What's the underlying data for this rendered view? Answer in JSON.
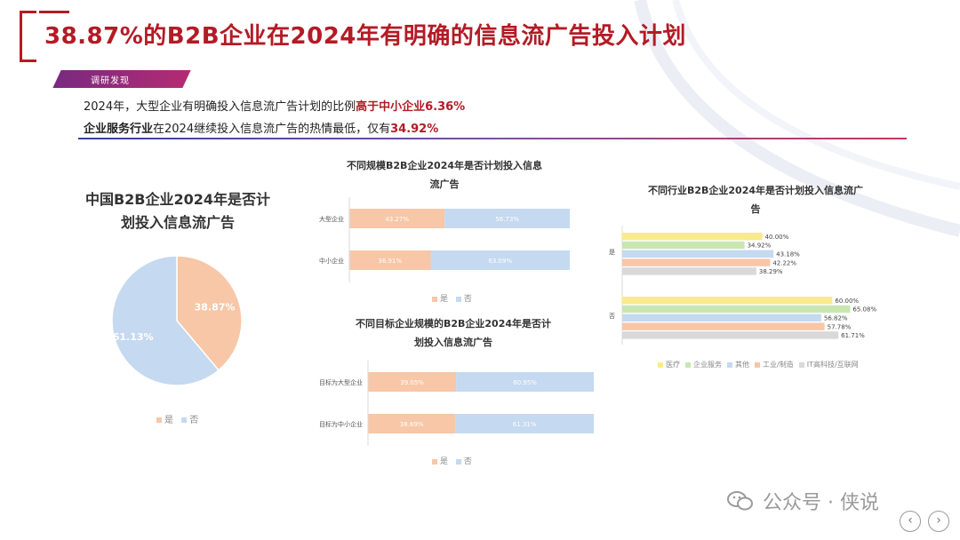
{
  "header": {
    "title": "38.87%的B2B企业在2024年有明确的信息流广告投入计划",
    "tag": "调研发现"
  },
  "findings": [
    {
      "pre": "2024年，大型企业有明确投入信息流广告计划的比例",
      "highlight": "高于中小企业6.36%",
      "post": ""
    },
    {
      "pre_bold": "企业服务行业",
      "pre": "在2024继续投入信息流广告的热情最低，仅有",
      "highlight": "34.92%"
    }
  ],
  "colors": {
    "yes": "#f7c7a7",
    "no": "#c5d9f0",
    "accent": "#b31b25"
  },
  "chart_data": [
    {
      "type": "pie",
      "title_line1": "中国B2B企业2024年是否计",
      "title_line2": "划投入信息流广告",
      "categories": [
        "是",
        "否"
      ],
      "values": [
        38.87,
        61.13
      ],
      "labels": [
        "38.87%",
        "61.13%"
      ],
      "legend": [
        "是",
        "否"
      ],
      "legend_position": "bottom"
    },
    {
      "type": "bar",
      "orientation": "horizontal-stacked",
      "title_line1": "不同规模B2B企业2024年是否计划投入信息",
      "title_line2": "流广告",
      "categories": [
        "大型企业",
        "中小企业"
      ],
      "series": [
        {
          "name": "是",
          "values": [
            43.27,
            36.91
          ],
          "labels": [
            "43.27%",
            "36.91%"
          ]
        },
        {
          "name": "否",
          "values": [
            56.73,
            63.09
          ],
          "labels": [
            "56.73%",
            "63.09%"
          ]
        }
      ],
      "legend": [
        "是",
        "否"
      ],
      "legend_position": "bottom",
      "xlim": [
        0,
        100
      ]
    },
    {
      "type": "bar",
      "orientation": "horizontal-stacked",
      "title_line1": "不同目标企业规模的B2B企业2024年是否计",
      "title_line2": "划投入信息流广告",
      "categories": [
        "目标为大型企业",
        "目标为中小企业"
      ],
      "series": [
        {
          "name": "是",
          "values": [
            39.05,
            38.69
          ],
          "labels": [
            "39.05%",
            "38.69%"
          ]
        },
        {
          "name": "否",
          "values": [
            60.95,
            61.31
          ],
          "labels": [
            "60.95%",
            "61.31%"
          ]
        }
      ],
      "legend": [
        "是",
        "否"
      ],
      "legend_position": "bottom",
      "xlim": [
        0,
        100
      ]
    },
    {
      "type": "bar",
      "orientation": "horizontal-grouped",
      "title_line1": "不同行业B2B企业2024年是否计划投入信息流广",
      "title_line2": "告",
      "categories": [
        "是",
        "否"
      ],
      "series": [
        {
          "name": "医疗",
          "color": "#f9ea8f",
          "values": [
            40.0,
            60.0
          ],
          "labels": [
            "40.00%",
            "60.00%"
          ]
        },
        {
          "name": "企业服务",
          "color": "#c8e7b0",
          "values": [
            34.92,
            65.08
          ],
          "labels": [
            "34.92%",
            "65.08%"
          ]
        },
        {
          "name": "其他",
          "color": "#c5d9f0",
          "values": [
            43.18,
            56.82
          ],
          "labels": [
            "43.18%",
            "56.82%"
          ]
        },
        {
          "name": "工业/制造",
          "color": "#f7c7a7",
          "values": [
            42.22,
            57.78
          ],
          "labels": [
            "42.22%",
            "57.78%"
          ]
        },
        {
          "name": "IT高科技/互联网",
          "color": "#d9d9d9",
          "values": [
            38.29,
            61.71
          ],
          "labels": [
            "38.29%",
            "61.71%"
          ]
        }
      ],
      "legend_position": "bottom",
      "xlim": [
        0,
        100
      ]
    }
  ],
  "watermark": {
    "text": "公众号 · 侠说",
    "icon": "wechat-icon"
  },
  "nav": {
    "prev": "‹",
    "next": "›"
  }
}
